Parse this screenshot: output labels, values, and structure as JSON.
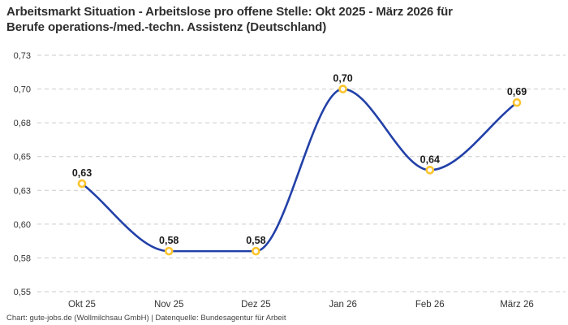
{
  "chart_data": {
    "type": "line",
    "title": "Arbeitsmarkt Situation - Arbeitslose pro offene Stelle: Okt 2025 - März 2026 für Berufe operations-/med.-techn. Assistenz (Deutschland)",
    "title_lines": [
      "Arbeitsmarkt Situation - Arbeitslose pro offene Stelle: Okt 2025 - März 2026 für",
      "Berufe operations-/med.-techn. Assistenz (Deutschland)"
    ],
    "categories": [
      "Okt 25",
      "Nov 25",
      "Dez 25",
      "Jan 26",
      "Feb 26",
      "März 26"
    ],
    "values": [
      0.63,
      0.58,
      0.58,
      0.7,
      0.64,
      0.69
    ],
    "data_labels": [
      "0,63",
      "0,58",
      "0,58",
      "0,70",
      "0,64",
      "0,69"
    ],
    "y_ticks": [
      {
        "value": 0.725,
        "label": "0,73"
      },
      {
        "value": 0.7,
        "label": "0,70"
      },
      {
        "value": 0.675,
        "label": "0,68"
      },
      {
        "value": 0.65,
        "label": "0,65"
      },
      {
        "value": 0.625,
        "label": "0,63"
      },
      {
        "value": 0.6,
        "label": "0,60"
      },
      {
        "value": 0.575,
        "label": "0,58"
      },
      {
        "value": 0.55,
        "label": "0,55"
      }
    ],
    "ylim": [
      0.55,
      0.725
    ],
    "xlabel": "",
    "ylabel": "",
    "grid": "dashed-horizontal",
    "legend": "none",
    "smooth": true,
    "colors": {
      "line": "#2240A8",
      "marker": "#FCC42D",
      "marker_fill": "#FFFFFF",
      "grid": "#CBCBCB",
      "axis_text": "#333333",
      "label_text": "#1A1A1A",
      "title_text": "#2E2E2E"
    }
  },
  "footer": {
    "credit": "Chart: gute-jobs.de (Wollmilchsau GmbH) | Datenquelle: Bundesagentur für Arbeit"
  }
}
